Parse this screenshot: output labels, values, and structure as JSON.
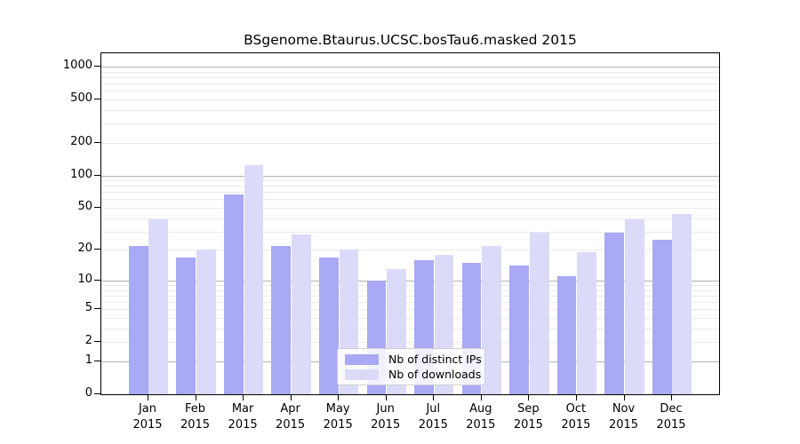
{
  "chart_data": {
    "type": "bar",
    "title": "BSgenome.Btaurus.UCSC.bosTau6.masked 2015",
    "categories": [
      "Jan",
      "Feb",
      "Mar",
      "Apr",
      "May",
      "Jun",
      "Jul",
      "Aug",
      "Sep",
      "Oct",
      "Nov",
      "Dec"
    ],
    "x_tick_year": "2015",
    "series": [
      {
        "name": "Nb of distinct IPs",
        "color": "#a9a9f5",
        "values": [
          22,
          17,
          67,
          22,
          17,
          10,
          16,
          15,
          14,
          11,
          29,
          25
        ]
      },
      {
        "name": "Nb of downloads",
        "color": "#dbdbf9",
        "values": [
          39,
          20,
          125,
          28,
          20,
          13,
          18,
          22,
          29,
          19,
          39,
          44
        ]
      }
    ],
    "y_scale": "log10(1+x)",
    "y_ticks": [
      0,
      1,
      2,
      5,
      10,
      20,
      50,
      100,
      200,
      500,
      1000
    ],
    "ylim": [
      0,
      1100
    ],
    "xlabel": "",
    "ylabel": "",
    "grid": true,
    "legend_position": "inside-bottom-center"
  },
  "colors": {
    "background": "#ffffff",
    "axis": "#000000",
    "major_grid": "#b3b3b3",
    "minor_grid": "#ebebeb",
    "bar_distinct_ips": "#a9a9f5",
    "bar_downloads": "#dbdbf9",
    "legend_border": "#cfcfcf"
  }
}
